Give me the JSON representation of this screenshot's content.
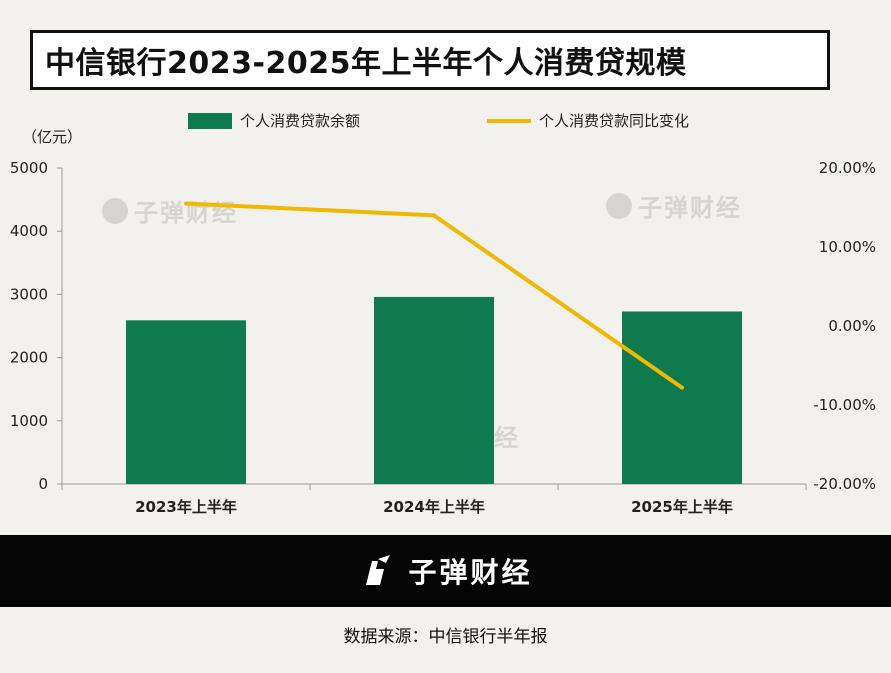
{
  "title": "中信银行2023-2025年上半年个人消费贷规模",
  "unit_label": "（亿元）",
  "legend": {
    "bar_label": "个人消费贷款余额",
    "line_label": "个人消费贷款同比变化"
  },
  "watermark_text": "子弹财经",
  "footer": {
    "brand": "子弹财经"
  },
  "source": "数据来源：中信银行半年报",
  "colors": {
    "bar": "#0f7a4f",
    "line": "#f0b800",
    "background": "#f2f1ee"
  },
  "chart_data": {
    "type": "bar",
    "categories": [
      "2023年上半年",
      "2024年上半年",
      "2025年上半年"
    ],
    "series": [
      {
        "name": "个人消费贷款余额",
        "type": "bar",
        "axis": "left",
        "values": [
          2590,
          2960,
          2730
        ]
      },
      {
        "name": "个人消费贷款同比变化",
        "type": "line",
        "axis": "right",
        "values": [
          15.5,
          14.0,
          -7.8
        ]
      }
    ],
    "ylim": [
      0,
      5000
    ],
    "yticks": [
      "0",
      "1000",
      "2000",
      "3000",
      "4000",
      "5000"
    ],
    "y2lim": [
      -20,
      20
    ],
    "y2ticks": [
      "-20.00%",
      "-10.00%",
      "0.00%",
      "10.00%",
      "20.00%"
    ],
    "grid": false,
    "legend_position": "top"
  }
}
